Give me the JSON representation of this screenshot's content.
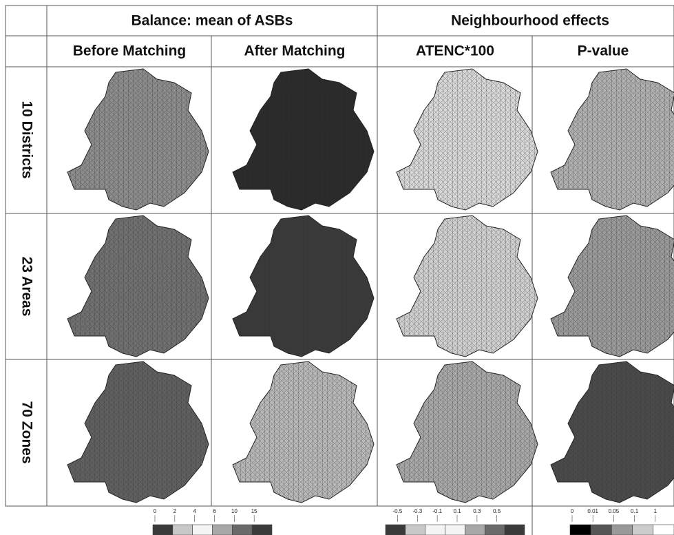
{
  "header": {
    "group_titles": [
      "Balance: mean of ASBs",
      "Neighbourhood effects"
    ],
    "column_titles": [
      "Before Matching",
      "After Matching",
      "ATENC*100",
      "P-value"
    ]
  },
  "rows": [
    {
      "label": "10 Districts"
    },
    {
      "label": "23 Areas"
    },
    {
      "label": "70 Zones"
    }
  ],
  "legends": [
    {
      "ticks": [
        "0",
        "2",
        "4",
        "6",
        "10",
        "15"
      ],
      "colors": [
        "#3a3a3a",
        "#c8c8c8",
        "#f4f4f4",
        "#a8a8a8",
        "#6a6a6a",
        "#3a3a3a"
      ]
    },
    {
      "ticks": [
        "-0.5",
        "-0.3",
        "-0.1",
        "0.1",
        "0.3",
        "0.5"
      ],
      "colors": [
        "#3a3a3a",
        "#c8c8c8",
        "#f4f4f4",
        "#f4f4f4",
        "#a8a8a8",
        "#6a6a6a",
        "#3a3a3a"
      ]
    },
    {
      "ticks": [
        "0",
        "0.01",
        "0.05",
        "0.1",
        "1"
      ],
      "colors": [
        "#000000",
        "#555555",
        "#999999",
        "#cccccc",
        "#ffffff"
      ]
    }
  ]
}
